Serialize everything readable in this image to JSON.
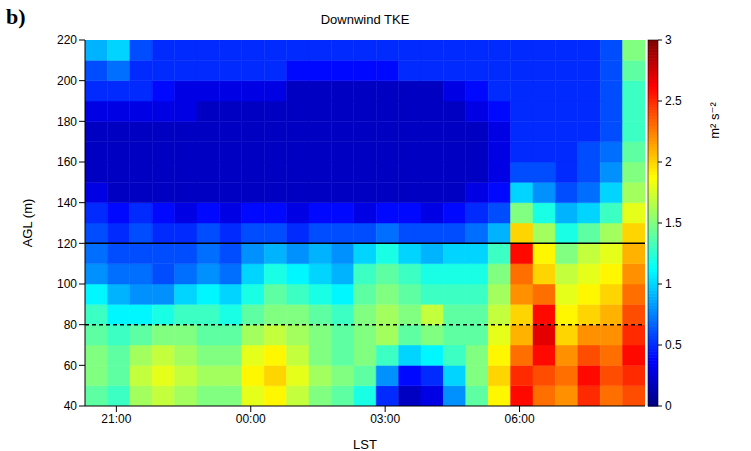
{
  "chart_data": {
    "type": "heatmap",
    "title": "Downwind TKE",
    "panel": "b)",
    "xlabel": "LST",
    "ylabel": "AGL (m)",
    "xlim": [
      20.3,
      32.8
    ],
    "xticks": [
      {
        "value": 21,
        "label": "21:00"
      },
      {
        "value": 24,
        "label": "00:00"
      },
      {
        "value": 27,
        "label": "03:00"
      },
      {
        "value": 30,
        "label": "06:00"
      }
    ],
    "ylim": [
      40,
      220
    ],
    "yticks": [
      40,
      60,
      80,
      100,
      120,
      140,
      160,
      180,
      200,
      220
    ],
    "x_bins": [
      20.3,
      20.8,
      21.3,
      21.8,
      22.3,
      22.8,
      23.3,
      23.8,
      24.3,
      24.8,
      25.3,
      25.8,
      26.3,
      26.8,
      27.3,
      27.8,
      28.3,
      28.8,
      29.3,
      29.8,
      30.3,
      30.8,
      31.3,
      31.8,
      32.3,
      32.8
    ],
    "y_bins": [
      40,
      50,
      60,
      70,
      80,
      90,
      100,
      110,
      120,
      130,
      140,
      150,
      160,
      170,
      180,
      190,
      200,
      210,
      220
    ],
    "cells": [
      [
        1.4,
        1.3,
        1.6,
        1.7,
        1.6,
        1.5,
        1.5,
        1.8,
        1.9,
        1.7,
        1.5,
        1.4,
        1.2,
        0.5,
        0.2,
        0.3,
        0.8,
        1.4,
        1.9,
        2.6,
        2.3,
        2.2,
        2.5,
        2.3,
        2.4
      ],
      [
        1.5,
        1.4,
        1.7,
        1.8,
        1.7,
        1.6,
        1.6,
        1.9,
        2.0,
        1.8,
        1.6,
        1.5,
        1.4,
        0.8,
        0.4,
        0.5,
        1.0,
        1.5,
        2.0,
        2.5,
        2.4,
        2.3,
        2.6,
        2.4,
        2.5
      ],
      [
        1.5,
        1.4,
        1.6,
        1.7,
        1.6,
        1.5,
        1.5,
        1.8,
        1.9,
        1.7,
        1.5,
        1.4,
        1.5,
        1.3,
        1.0,
        1.1,
        1.3,
        1.5,
        1.9,
        2.3,
        2.6,
        2.2,
        2.4,
        2.3,
        2.6
      ],
      [
        1.4,
        1.3,
        1.4,
        1.5,
        1.5,
        1.4,
        1.4,
        1.6,
        1.7,
        1.6,
        1.5,
        1.4,
        1.5,
        1.6,
        1.4,
        1.5,
        1.4,
        1.4,
        1.8,
        2.1,
        2.7,
        2.0,
        2.2,
        2.2,
        2.5
      ],
      [
        1.3,
        1.1,
        1.1,
        1.2,
        1.3,
        1.3,
        1.2,
        1.4,
        1.5,
        1.5,
        1.4,
        1.3,
        1.5,
        1.6,
        1.5,
        1.7,
        1.4,
        1.4,
        1.7,
        2.0,
        2.6,
        1.9,
        2.0,
        2.1,
        2.4
      ],
      [
        1.1,
        0.9,
        0.8,
        0.8,
        1.0,
        1.1,
        1.0,
        1.2,
        1.4,
        1.3,
        1.2,
        1.1,
        1.4,
        1.5,
        1.4,
        1.3,
        1.3,
        1.3,
        1.6,
        2.2,
        2.3,
        1.8,
        1.9,
        2.0,
        2.3
      ],
      [
        0.8,
        0.7,
        0.7,
        0.6,
        0.7,
        0.8,
        0.7,
        1.0,
        1.2,
        1.1,
        1.0,
        0.9,
        1.3,
        1.4,
        1.3,
        1.2,
        1.2,
        1.2,
        1.5,
        2.3,
        2.0,
        1.7,
        1.8,
        1.9,
        2.2
      ],
      [
        0.7,
        0.6,
        0.6,
        0.6,
        0.6,
        0.7,
        0.6,
        0.8,
        0.9,
        0.8,
        0.9,
        0.8,
        1.0,
        1.2,
        1.0,
        0.9,
        1.0,
        1.0,
        1.3,
        2.6,
        1.9,
        1.5,
        1.7,
        1.8,
        2.1
      ],
      [
        0.6,
        0.5,
        0.6,
        0.5,
        0.5,
        0.6,
        0.5,
        0.6,
        0.6,
        0.5,
        0.6,
        0.6,
        0.6,
        0.7,
        0.6,
        0.6,
        0.6,
        0.7,
        0.9,
        2.0,
        1.6,
        1.2,
        1.4,
        1.6,
        2.0
      ],
      [
        0.5,
        0.4,
        0.5,
        0.4,
        0.3,
        0.4,
        0.3,
        0.4,
        0.4,
        0.3,
        0.4,
        0.4,
        0.3,
        0.4,
        0.4,
        0.3,
        0.4,
        0.5,
        0.6,
        1.5,
        1.2,
        0.9,
        1.0,
        1.3,
        1.8
      ],
      [
        0.3,
        0.2,
        0.2,
        0.2,
        0.2,
        0.2,
        0.2,
        0.2,
        0.2,
        0.2,
        0.2,
        0.2,
        0.2,
        0.2,
        0.2,
        0.2,
        0.2,
        0.3,
        0.4,
        1.0,
        0.8,
        0.6,
        0.7,
        1.0,
        1.6
      ],
      [
        0.2,
        0.2,
        0.2,
        0.2,
        0.2,
        0.2,
        0.2,
        0.2,
        0.2,
        0.2,
        0.2,
        0.2,
        0.2,
        0.2,
        0.2,
        0.2,
        0.2,
        0.2,
        0.3,
        0.6,
        0.6,
        0.5,
        0.6,
        0.8,
        1.5
      ],
      [
        0.2,
        0.2,
        0.2,
        0.2,
        0.2,
        0.2,
        0.2,
        0.2,
        0.2,
        0.2,
        0.2,
        0.2,
        0.2,
        0.2,
        0.2,
        0.2,
        0.2,
        0.2,
        0.3,
        0.5,
        0.5,
        0.5,
        0.6,
        0.7,
        1.4
      ],
      [
        0.2,
        0.2,
        0.2,
        0.2,
        0.2,
        0.2,
        0.2,
        0.2,
        0.2,
        0.2,
        0.2,
        0.2,
        0.2,
        0.2,
        0.2,
        0.2,
        0.2,
        0.2,
        0.3,
        0.5,
        0.5,
        0.5,
        0.5,
        0.6,
        1.3
      ],
      [
        0.3,
        0.3,
        0.3,
        0.3,
        0.3,
        0.2,
        0.2,
        0.2,
        0.2,
        0.2,
        0.2,
        0.2,
        0.2,
        0.2,
        0.2,
        0.2,
        0.2,
        0.3,
        0.4,
        0.5,
        0.5,
        0.5,
        0.5,
        0.6,
        1.3
      ],
      [
        0.5,
        0.5,
        0.5,
        0.4,
        0.3,
        0.3,
        0.3,
        0.3,
        0.3,
        0.2,
        0.2,
        0.2,
        0.2,
        0.2,
        0.2,
        0.2,
        0.3,
        0.4,
        0.5,
        0.5,
        0.5,
        0.5,
        0.5,
        0.6,
        1.3
      ],
      [
        0.6,
        0.7,
        0.5,
        0.5,
        0.5,
        0.5,
        0.5,
        0.5,
        0.5,
        0.4,
        0.4,
        0.4,
        0.4,
        0.4,
        0.5,
        0.5,
        0.5,
        0.5,
        0.5,
        0.5,
        0.5,
        0.5,
        0.5,
        0.6,
        1.4
      ],
      [
        0.9,
        1.0,
        0.6,
        0.5,
        0.5,
        0.5,
        0.5,
        0.5,
        0.5,
        0.5,
        0.5,
        0.5,
        0.5,
        0.5,
        0.5,
        0.5,
        0.5,
        0.5,
        0.5,
        0.5,
        0.5,
        0.5,
        0.5,
        0.6,
        1.5
      ]
    ],
    "colorbar": {
      "label": "m² s⁻²",
      "range": [
        0,
        3
      ],
      "ticks": [
        0,
        0.5,
        1,
        1.5,
        2,
        2.5,
        3
      ]
    },
    "reference_lines": [
      {
        "y": 120,
        "line_style": "solid",
        "color": "#000000"
      },
      {
        "y": 80,
        "line_style": "dashed",
        "color": "#000000"
      }
    ]
  }
}
